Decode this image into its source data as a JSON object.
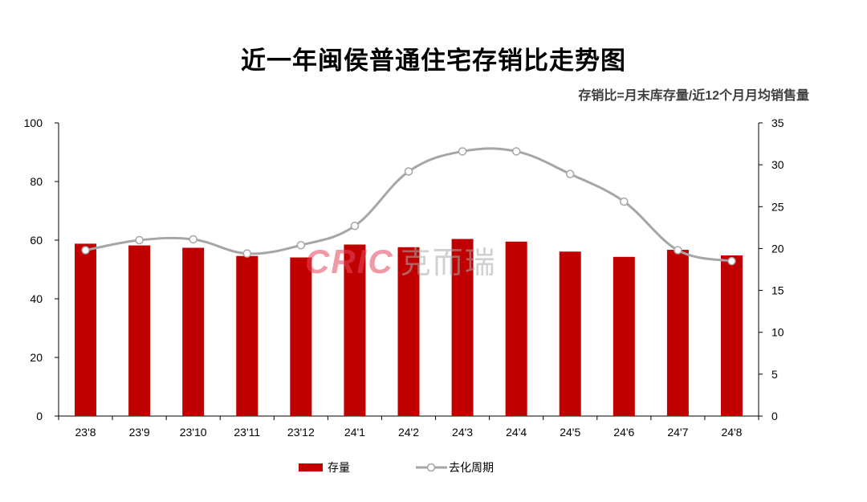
{
  "title": "近一年闽侯普通住宅存销比走势图",
  "note": "存销比=月末库存量/近12个月月均销售量",
  "watermark": {
    "brand_latin": "CRIC",
    "brand_cn": "克而瑞"
  },
  "colors": {
    "bar": "#C00000",
    "line": "#A6A6A6",
    "axis": "#000000"
  },
  "chart_data": {
    "type": "bar",
    "categories": [
      "23'8",
      "23'9",
      "23'10",
      "23'11",
      "23'12",
      "24'1",
      "24'2",
      "24'3",
      "24'4",
      "24'5",
      "24'6",
      "24'7",
      "24'8"
    ],
    "series": [
      {
        "name": "存量",
        "type": "bar",
        "axis": "left",
        "values": [
          58.8,
          58.2,
          57.4,
          54.6,
          54.1,
          58.5,
          57.6,
          60.4,
          59.5,
          56.1,
          54.3,
          56.7,
          54.8
        ]
      },
      {
        "name": "去化周期",
        "type": "line",
        "axis": "right",
        "values": [
          19.8,
          21.0,
          21.1,
          19.4,
          20.4,
          22.7,
          29.2,
          31.6,
          31.6,
          28.9,
          25.6,
          19.8,
          18.5
        ]
      }
    ],
    "y_left": {
      "min": 0,
      "max": 100,
      "ticks": [
        "0",
        "20",
        "40",
        "60",
        "80",
        "100"
      ]
    },
    "y_right": {
      "min": 0,
      "max": 35,
      "ticks": [
        "0",
        "5",
        "10",
        "15",
        "20",
        "25",
        "30",
        "35"
      ]
    },
    "grid": false,
    "legend": "bottom"
  }
}
